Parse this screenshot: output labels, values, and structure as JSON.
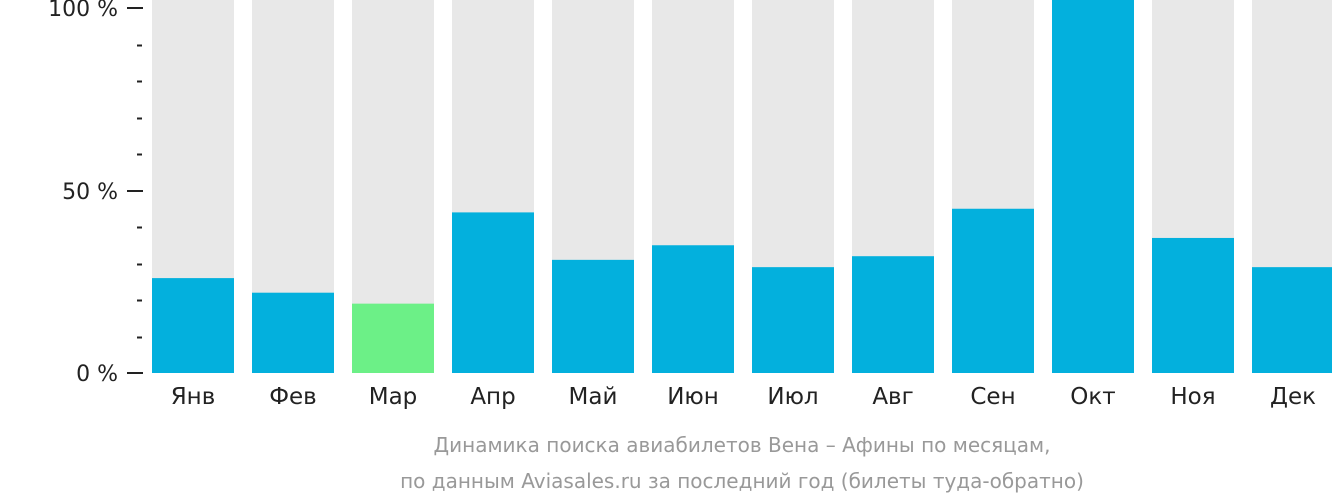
{
  "chart_data": {
    "type": "bar",
    "categories": [
      "Янв",
      "Фев",
      "Мар",
      "Апр",
      "Май",
      "Июн",
      "Июл",
      "Авг",
      "Сен",
      "Окт",
      "Ноя",
      "Дек"
    ],
    "values": [
      26,
      22,
      19,
      44,
      31,
      35,
      29,
      32,
      45,
      100,
      37,
      29
    ],
    "max_value": 100,
    "highlight_index": 2,
    "ylim": [
      0,
      100
    ],
    "y_ticks": [
      {
        "value": 0,
        "label": "0 %"
      },
      {
        "value": 50,
        "label": "50 %"
      },
      {
        "value": 100,
        "label": "100 %"
      }
    ],
    "y_minor_tick_step": 10,
    "colors": {
      "bar": "#03b0dd",
      "highlight": "#6cf087",
      "background_bar": "#e8e8e8",
      "axis": "#222222",
      "caption": "#999999"
    },
    "caption_lines": [
      "Динамика поиска авиабилетов Вена – Афины по месяцам,",
      "по данным Aviasales.ru за последний год (билеты туда-обратно)"
    ]
  }
}
